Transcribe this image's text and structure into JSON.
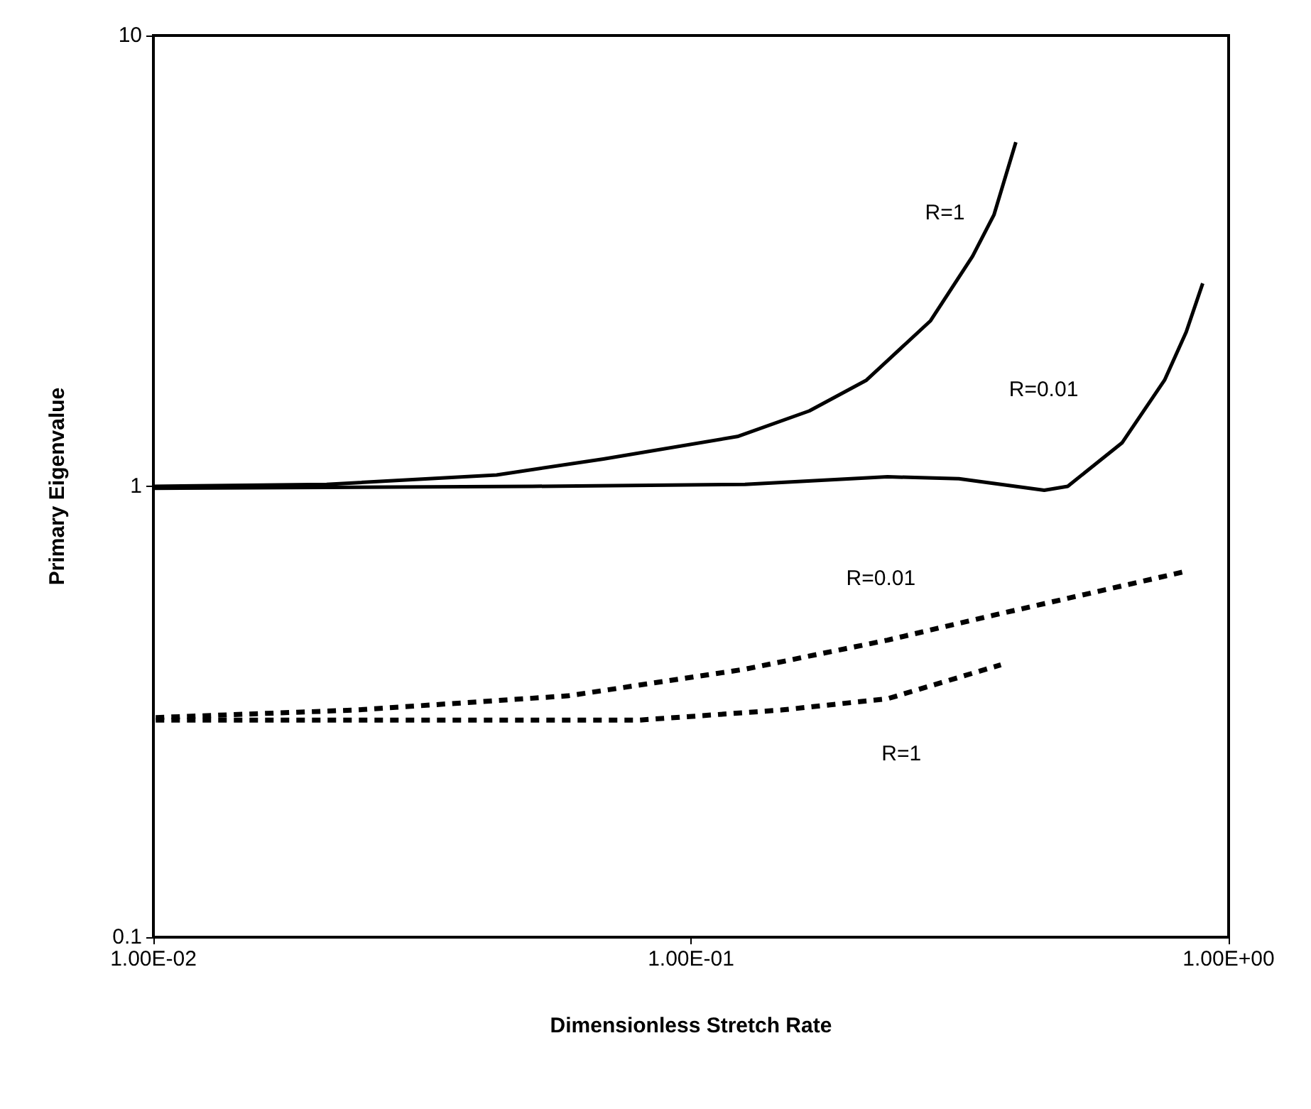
{
  "chart_data": {
    "type": "line",
    "xlabel": "Dimensionless Stretch Rate",
    "ylabel": "Primary Eigenvalue",
    "log": "xy",
    "grid": false,
    "marker": "none",
    "xlim": [
      0.01,
      1
    ],
    "xticks": [
      {
        "value": 0.01,
        "label": "1.00E-02"
      },
      {
        "value": 0.1,
        "label": "1.00E-01"
      },
      {
        "value": 1,
        "label": "1.00E+00"
      }
    ],
    "ylim": [
      0.1,
      10
    ],
    "yticks": [
      0.1,
      1,
      10
    ],
    "series": [
      {
        "name": "R=1",
        "color": "#000000",
        "line_style": "solid",
        "x": [
          0.01,
          0.021,
          0.0435,
          0.0687,
          0.122,
          0.166,
          0.212,
          0.279,
          0.334,
          0.366,
          0.402
        ],
        "values": [
          1.0,
          1.01,
          1.06,
          1.15,
          1.29,
          1.47,
          1.72,
          2.33,
          3.24,
          4.0,
          5.8
        ]
      },
      {
        "name": "R=0.01",
        "color": "#000000",
        "line_style": "solid",
        "x": [
          0.01,
          0.0507,
          0.126,
          0.232,
          0.315,
          0.454,
          0.502,
          0.634,
          0.76,
          0.834,
          0.895
        ],
        "values": [
          0.99,
          1.0,
          1.01,
          1.05,
          1.04,
          0.98,
          1.0,
          1.25,
          1.72,
          2.2,
          2.82
        ]
      },
      {
        "name": "R=0.01",
        "color": "#000000",
        "line_style": "dashed",
        "x": [
          0.0101,
          0.0237,
          0.059,
          0.126,
          0.232,
          0.366,
          0.834
        ],
        "values": [
          0.307,
          0.319,
          0.343,
          0.393,
          0.456,
          0.518,
          0.648
        ]
      },
      {
        "name": "R=1",
        "color": "#000000",
        "line_style": "dashed",
        "x": [
          0.0101,
          0.032,
          0.08,
          0.147,
          0.232,
          0.377
        ],
        "values": [
          0.303,
          0.303,
          0.303,
          0.319,
          0.338,
          0.402
        ]
      }
    ]
  }
}
